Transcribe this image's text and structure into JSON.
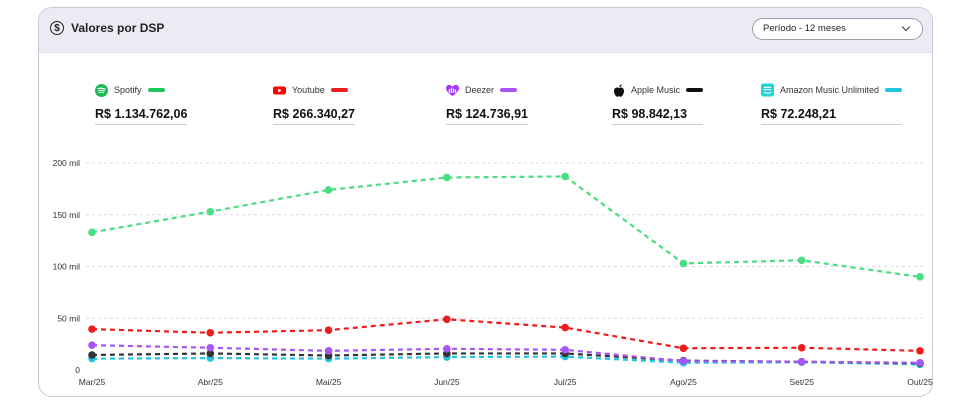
{
  "header": {
    "title": "Valores por DSP",
    "period_label": "Período - 12 meses"
  },
  "icons": {
    "title": "dollar-circle-icon",
    "period": "chevron-down-icon"
  },
  "legend": [
    {
      "name": "Spotify",
      "value": "R$ 1.134.762,06",
      "color": "#22c55e",
      "icon": "spotify-icon"
    },
    {
      "name": "Youtube",
      "value": "R$ 266.340,27",
      "color": "#ef1c1c",
      "icon": "youtube-icon"
    },
    {
      "name": "Deezer",
      "value": "R$ 124.736,91",
      "color": "#a855f7",
      "icon": "deezer-icon"
    },
    {
      "name": "Apple Music",
      "value": "R$ 98.842,13",
      "color": "#111111",
      "icon": "apple-icon"
    },
    {
      "name": "Amazon Music Unlimited",
      "value": "R$ 72.248,21",
      "color": "#22c5e0",
      "icon": "amazon-music-icon"
    }
  ],
  "chart_data": {
    "type": "line",
    "categories": [
      "Mar/25",
      "Abr/25",
      "Mai/25",
      "Jun/25",
      "Jul/25",
      "Ago/25",
      "Set/25",
      "Out/25"
    ],
    "y_ticks": [
      {
        "value": 0,
        "label": "0"
      },
      {
        "value": 50000,
        "label": "50 mil"
      },
      {
        "value": 100000,
        "label": "100 mil"
      },
      {
        "value": 150000,
        "label": "150 mil"
      },
      {
        "value": 200000,
        "label": "200 mil"
      }
    ],
    "ylim": [
      0,
      200000
    ],
    "grid": true,
    "line_style": "dashed",
    "series": [
      {
        "name": "Spotify",
        "color": "#4ade80",
        "values": [
          133000,
          153000,
          174000,
          186000,
          187000,
          103000,
          106000,
          90000
        ]
      },
      {
        "name": "Youtube",
        "color": "#ef1c1c",
        "values": [
          39500,
          36000,
          38500,
          49000,
          41000,
          21000,
          21500,
          18500
        ]
      },
      {
        "name": "Deezer",
        "color": "#a855f7",
        "values": [
          24000,
          21500,
          18500,
          20500,
          19500,
          8500,
          8000,
          7000
        ]
      },
      {
        "name": "Apple Music",
        "color": "#333333",
        "values": [
          14500,
          16000,
          14000,
          16000,
          16000,
          9000,
          8000,
          6500
        ]
      },
      {
        "name": "Amazon Music Unlimited",
        "color": "#22c5e0",
        "values": [
          11000,
          11500,
          11000,
          12500,
          13000,
          7000,
          7500,
          5500
        ]
      }
    ]
  }
}
